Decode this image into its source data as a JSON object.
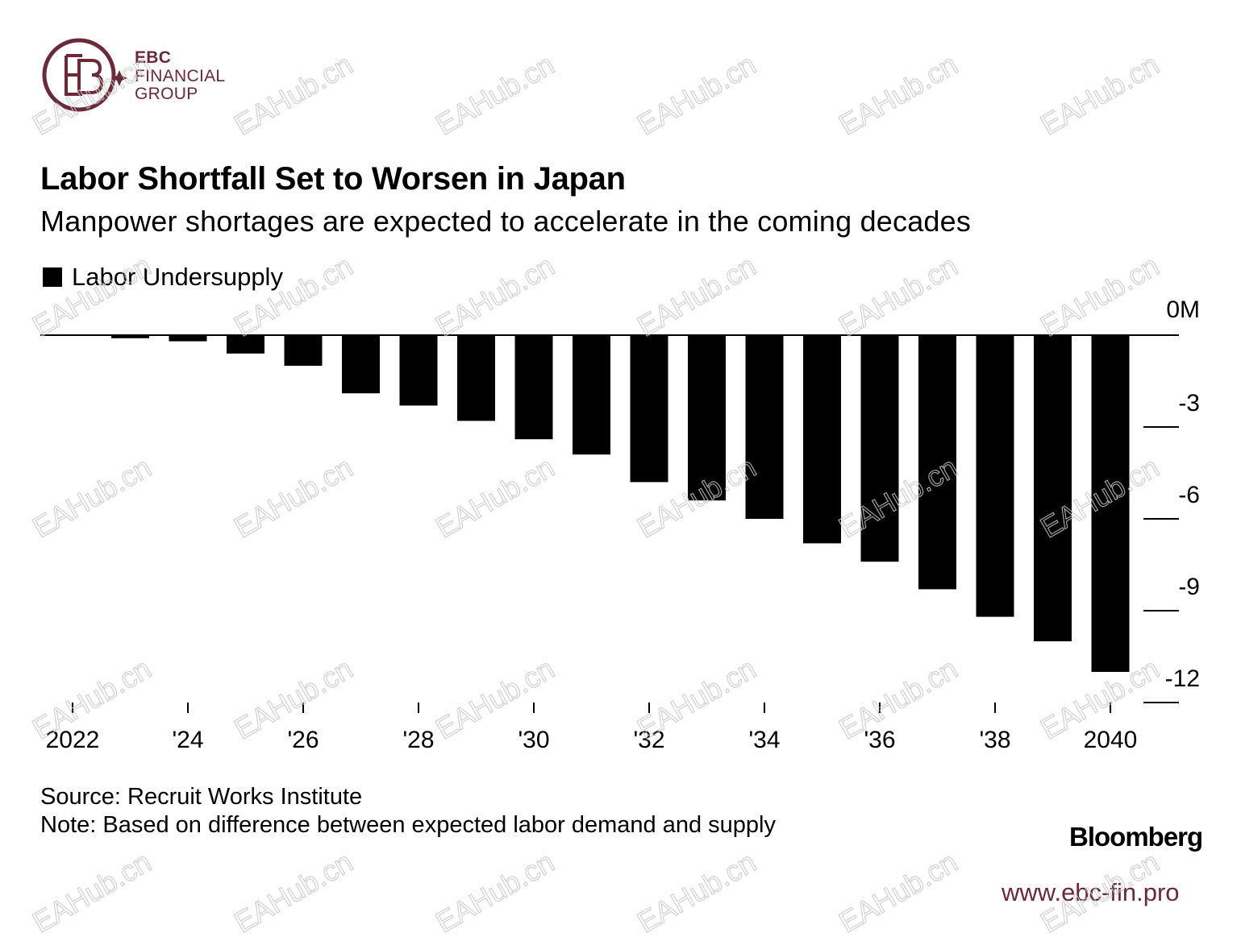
{
  "brand": {
    "line1": "EBC",
    "line2": "FINANCIAL",
    "line3": "GROUP",
    "color": "#6b2a3a"
  },
  "title": "Labor Shortfall Set to Worsen in Japan",
  "subtitle": "Manpower shortages are expected to accelerate in the coming decades",
  "legend": {
    "label": "Labor Undersupply"
  },
  "chart_data": {
    "type": "bar",
    "title": "Labor Shortfall Set to Worsen in Japan",
    "series": [
      {
        "name": "Labor Undersupply",
        "categories": [
          2022,
          2023,
          2024,
          2025,
          2026,
          2027,
          2028,
          2029,
          2030,
          2031,
          2032,
          2033,
          2034,
          2035,
          2036,
          2037,
          2038,
          2039,
          2040
        ],
        "values": [
          0,
          -0.1,
          -0.2,
          -0.6,
          -1.0,
          -1.9,
          -2.3,
          -2.8,
          -3.4,
          -3.9,
          -4.8,
          -5.4,
          -6.0,
          -6.8,
          -7.4,
          -8.3,
          -9.2,
          -10.0,
          -11.0
        ]
      }
    ],
    "x_tick_labels": [
      {
        "year": 2022,
        "label": "2022"
      },
      {
        "year": 2024,
        "label": "'24"
      },
      {
        "year": 2026,
        "label": "'26"
      },
      {
        "year": 2028,
        "label": "'28"
      },
      {
        "year": 2030,
        "label": "'30"
      },
      {
        "year": 2032,
        "label": "'32"
      },
      {
        "year": 2034,
        "label": "'34"
      },
      {
        "year": 2036,
        "label": "'36"
      },
      {
        "year": 2038,
        "label": "'38"
      },
      {
        "year": 2040,
        "label": "2040"
      }
    ],
    "y_ticks": [
      {
        "value": 0,
        "label": "0M"
      },
      {
        "value": -3,
        "label": "-3"
      },
      {
        "value": -6,
        "label": "-6"
      },
      {
        "value": -9,
        "label": "-9"
      },
      {
        "value": -12,
        "label": "-12"
      }
    ],
    "ylim": [
      -12,
      0
    ],
    "bar_color": "#000000"
  },
  "source": "Source: Recruit Works Institute",
  "note": "Note: Based on difference between expected labor demand and supply",
  "publisher": "Bloomberg",
  "url": "www.ebc-fin.pro",
  "watermark": "EAHub.cn"
}
